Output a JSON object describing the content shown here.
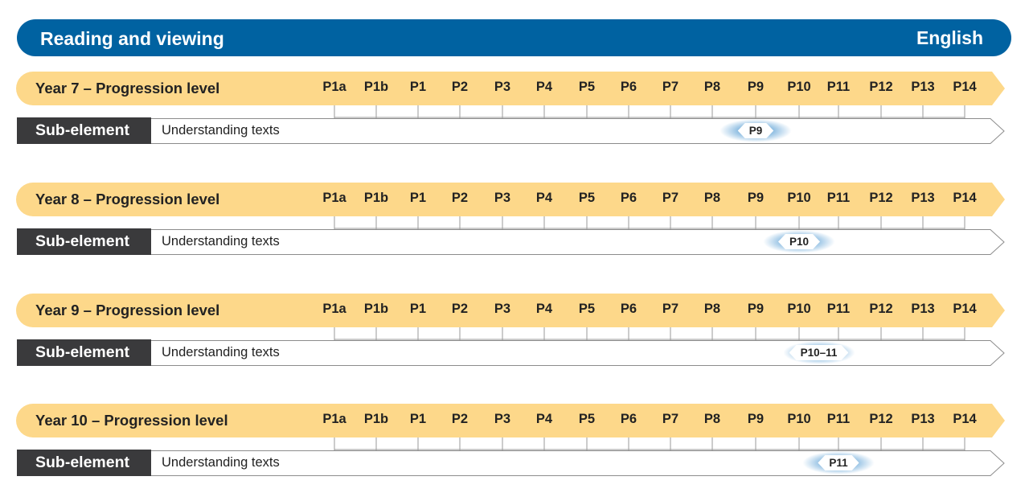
{
  "header": {
    "title": "Reading and viewing",
    "subject": "English"
  },
  "levels": [
    "P1a",
    "P1b",
    "P1",
    "P2",
    "P3",
    "P4",
    "P5",
    "P6",
    "P7",
    "P8",
    "P9",
    "P10",
    "P11",
    "P12",
    "P13",
    "P14"
  ],
  "rows": [
    {
      "year_label": "Year 7 – Progression level",
      "sub_label": "Sub-element",
      "sub_text": "Understanding texts",
      "marker": "P9",
      "marker_level_index": 10
    },
    {
      "year_label": "Year 8 – Progression level",
      "sub_label": "Sub-element",
      "sub_text": "Understanding texts",
      "marker": "P10",
      "marker_level_index": 11
    },
    {
      "year_label": "Year 9 – Progression level",
      "sub_label": "Sub-element",
      "sub_text": "Understanding texts",
      "marker": "P10–11",
      "marker_level_index": 11.5
    },
    {
      "year_label": "Year 10 – Progression level",
      "sub_label": "Sub-element",
      "sub_text": "Understanding texts",
      "marker": "P11",
      "marker_level_index": 12
    }
  ],
  "colors": {
    "header": "#0062A1",
    "level_bar": "#FDD88A",
    "sub_label_bg": "#3A3A3C",
    "marker_glow": "#2F86C8"
  }
}
